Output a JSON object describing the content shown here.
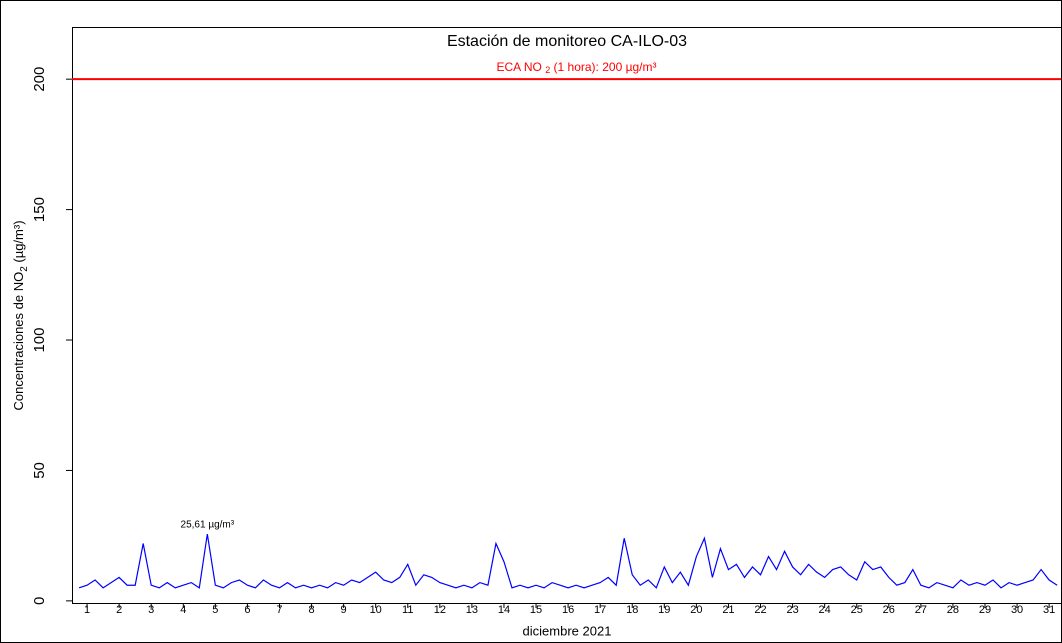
{
  "chart_data": {
    "type": "line",
    "title": "Estación de monitoreo  CA-ILO-03",
    "xlabel": "diciembre 2021",
    "ylabel": {
      "before": "Concentraciones de NO",
      "sub": "2",
      "after": " (µg/m³)"
    },
    "reference_line": {
      "value": 200,
      "color": "#ff0000",
      "label": {
        "before": "ECA NO ",
        "sub": "2",
        "after": " (1 hora): 200 µg/m³"
      }
    },
    "annotation": {
      "text": "25,61 µg/m³",
      "x": 4.75,
      "y": 25.61
    },
    "x": [
      0.75,
      1,
      1.25,
      1.5,
      1.75,
      2,
      2.25,
      2.5,
      2.75,
      3,
      3.25,
      3.5,
      3.75,
      4,
      4.25,
      4.5,
      4.75,
      5,
      5.25,
      5.5,
      5.75,
      6,
      6.25,
      6.5,
      6.75,
      7,
      7.25,
      7.5,
      7.75,
      8,
      8.25,
      8.5,
      8.75,
      9,
      9.25,
      9.5,
      9.75,
      10,
      10.25,
      10.5,
      10.75,
      11,
      11.25,
      11.5,
      11.75,
      12,
      12.25,
      12.5,
      12.75,
      13,
      13.25,
      13.5,
      13.75,
      14,
      14.25,
      14.5,
      14.75,
      15,
      15.25,
      15.5,
      15.75,
      16,
      16.25,
      16.5,
      16.75,
      17,
      17.25,
      17.5,
      17.75,
      18,
      18.25,
      18.5,
      18.75,
      19,
      19.25,
      19.5,
      19.75,
      20,
      20.25,
      20.5,
      20.75,
      21,
      21.25,
      21.5,
      21.75,
      22,
      22.25,
      22.5,
      22.75,
      23,
      23.25,
      23.5,
      23.75,
      24,
      24.25,
      24.5,
      24.75,
      25,
      25.25,
      25.5,
      25.75,
      26,
      26.25,
      26.5,
      26.75,
      27,
      27.25,
      27.5,
      27.75,
      28,
      28.25,
      28.5,
      28.75,
      29,
      29.25,
      29.5,
      29.75,
      30,
      30.25,
      30.5,
      30.75,
      31,
      31.25
    ],
    "series": [
      {
        "name": "NO2",
        "color": "#0000ff",
        "values": [
          5,
          6,
          8,
          5,
          7,
          9,
          6,
          6,
          22,
          6,
          5,
          7,
          5,
          6,
          7,
          5,
          25.61,
          6,
          5,
          7,
          8,
          6,
          5,
          8,
          6,
          5,
          7,
          5,
          6,
          5,
          6,
          5,
          7,
          6,
          8,
          7,
          9,
          11,
          8,
          7,
          9,
          14,
          6,
          10,
          9,
          7,
          6,
          5,
          6,
          5,
          7,
          6,
          22,
          15,
          5,
          6,
          5,
          6,
          5,
          7,
          6,
          5,
          6,
          5,
          6,
          7,
          9,
          6,
          24,
          10,
          6,
          8,
          5,
          13,
          7,
          11,
          6,
          17,
          24,
          9,
          20,
          12,
          14,
          9,
          13,
          10,
          17,
          12,
          19,
          13,
          10,
          14,
          11,
          9,
          12,
          13,
          10,
          8,
          15,
          12,
          13,
          9,
          6,
          7,
          12,
          6,
          5,
          7,
          6,
          5,
          8,
          6,
          7,
          6,
          8,
          5,
          7,
          6,
          7,
          8,
          12,
          8,
          6
        ]
      }
    ],
    "xlim": [
      0.53,
      31.37
    ],
    "xticks": [
      1,
      2,
      3,
      4,
      5,
      6,
      7,
      8,
      9,
      10,
      11,
      12,
      13,
      14,
      15,
      16,
      17,
      18,
      19,
      20,
      21,
      22,
      23,
      24,
      25,
      26,
      27,
      28,
      29,
      30,
      31
    ],
    "ylim": [
      -1.2,
      220
    ],
    "yticks": [
      0,
      50,
      100,
      150,
      200
    ]
  }
}
